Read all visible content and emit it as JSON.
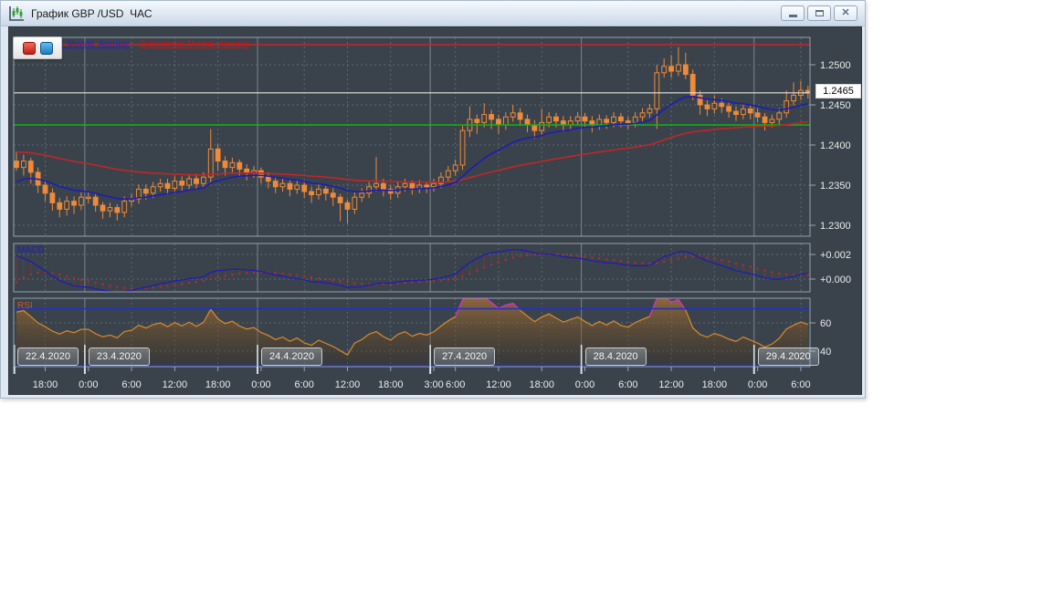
{
  "window": {
    "title": "График GBP /USD  ЧАС",
    "icon": "candlestick-chart-icon",
    "controls": {
      "minimize": "minimize",
      "restore": "restore-down",
      "close": "close"
    }
  },
  "toolbar": {
    "buttons": [
      {
        "name": "red-square",
        "color": "#c01f14"
      },
      {
        "name": "blue-square",
        "color": "#1a7ac2"
      }
    ]
  },
  "legend": {
    "fast_label": "Exponential_Moving_Average",
    "slow_label": "Exponential_Moving_Average",
    "fast_color": "#2323c8",
    "slow_color": "#d01414"
  },
  "panes": {
    "macd_label": "MACD",
    "rsi_label": "RSI"
  },
  "price_axis": {
    "tick_labels": [
      "1.2500",
      "1.2450",
      "1.2400",
      "1.2350",
      "1.2300"
    ],
    "tick_values": [
      1.25,
      1.245,
      1.24,
      1.235,
      1.23
    ],
    "current_price": "1.2465"
  },
  "chart_data": {
    "type": "candlestick",
    "instrument": "GBP /USD",
    "timeframe": "ЧАС",
    "current_price": 1.2465,
    "levels": {
      "resistance_red": 1.2525,
      "support_green": 1.2425,
      "current_white": 1.2465
    },
    "ylim": [
      1.2286,
      1.2534
    ],
    "days": [
      {
        "label": "22.4.2020",
        "index": 0
      },
      {
        "label": "23.4.2020",
        "index": 10
      },
      {
        "label": "24.4.2020",
        "index": 34
      },
      {
        "label": "27.4.2020",
        "index": 58
      },
      {
        "label": "28.4.2020",
        "index": 79
      },
      {
        "label": "29.4.2020",
        "index": 103
      }
    ],
    "time_ticks": [
      {
        "index": 4,
        "label": "18:00"
      },
      {
        "index": 10,
        "label": "0:00"
      },
      {
        "index": 16,
        "label": "6:00"
      },
      {
        "index": 22,
        "label": "12:00"
      },
      {
        "index": 28,
        "label": "18:00"
      },
      {
        "index": 34,
        "label": "0:00"
      },
      {
        "index": 40,
        "label": "6:00"
      },
      {
        "index": 46,
        "label": "12:00"
      },
      {
        "index": 52,
        "label": "18:00"
      },
      {
        "index": 58,
        "label": "3:00"
      },
      {
        "index": 61,
        "label": "6:00"
      },
      {
        "index": 67,
        "label": "12:00"
      },
      {
        "index": 73,
        "label": "18:00"
      },
      {
        "index": 79,
        "label": "0:00"
      },
      {
        "index": 85,
        "label": "6:00"
      },
      {
        "index": 91,
        "label": "12:00"
      },
      {
        "index": 97,
        "label": "18:00"
      },
      {
        "index": 103,
        "label": "0:00"
      },
      {
        "index": 109,
        "label": "6:00"
      }
    ],
    "candles": [
      [
        1.238,
        1.2392,
        1.2368,
        1.2372
      ],
      [
        1.2372,
        1.2388,
        1.2362,
        1.238
      ],
      [
        1.238,
        1.2384,
        1.2352,
        1.2366
      ],
      [
        1.2366,
        1.2372,
        1.234,
        1.235
      ],
      [
        1.235,
        1.2356,
        1.233,
        1.234
      ],
      [
        1.234,
        1.2346,
        1.2318,
        1.2328
      ],
      [
        1.2328,
        1.2334,
        1.231,
        1.232
      ],
      [
        1.232,
        1.2336,
        1.2312,
        1.233
      ],
      [
        1.233,
        1.2336,
        1.2314,
        1.2325
      ],
      [
        1.2325,
        1.2341,
        1.2319,
        1.2335
      ],
      [
        1.2335,
        1.2341,
        1.2327,
        1.2335
      ],
      [
        1.2335,
        1.2339,
        1.2317,
        1.2325
      ],
      [
        1.2325,
        1.2329,
        1.2308,
        1.2318
      ],
      [
        1.2318,
        1.2328,
        1.231,
        1.2322
      ],
      [
        1.2322,
        1.2326,
        1.2306,
        1.2316
      ],
      [
        1.2316,
        1.2336,
        1.231,
        1.233
      ],
      [
        1.233,
        1.2339,
        1.2324,
        1.2333
      ],
      [
        1.2333,
        1.2351,
        1.2327,
        1.2345
      ],
      [
        1.2345,
        1.2351,
        1.2332,
        1.234
      ],
      [
        1.234,
        1.2354,
        1.2334,
        1.2348
      ],
      [
        1.2348,
        1.2358,
        1.2342,
        1.2352
      ],
      [
        1.2352,
        1.2358,
        1.2338,
        1.2346
      ],
      [
        1.2346,
        1.2361,
        1.234,
        1.2355
      ],
      [
        1.2355,
        1.2361,
        1.2343,
        1.235
      ],
      [
        1.235,
        1.2364,
        1.2344,
        1.2358
      ],
      [
        1.2358,
        1.2364,
        1.2344,
        1.2352
      ],
      [
        1.2352,
        1.2366,
        1.2346,
        1.236
      ],
      [
        1.236,
        1.242,
        1.2352,
        1.2395
      ],
      [
        1.2395,
        1.2401,
        1.2368,
        1.238
      ],
      [
        1.238,
        1.2386,
        1.2362,
        1.2372
      ],
      [
        1.2372,
        1.2384,
        1.2366,
        1.2378
      ],
      [
        1.2378,
        1.2382,
        1.236,
        1.237
      ],
      [
        1.237,
        1.2376,
        1.2356,
        1.2365
      ],
      [
        1.2365,
        1.2374,
        1.2359,
        1.2368
      ],
      [
        1.2368,
        1.2372,
        1.2352,
        1.236
      ],
      [
        1.236,
        1.2366,
        1.2346,
        1.2355
      ],
      [
        1.2355,
        1.236,
        1.234,
        1.2348
      ],
      [
        1.2348,
        1.2358,
        1.2342,
        1.2352
      ],
      [
        1.2352,
        1.2356,
        1.2336,
        1.2345
      ],
      [
        1.2345,
        1.2356,
        1.2339,
        1.235
      ],
      [
        1.235,
        1.2354,
        1.2334,
        1.2342
      ],
      [
        1.2342,
        1.2348,
        1.2328,
        1.2338
      ],
      [
        1.2338,
        1.2351,
        1.2332,
        1.2345
      ],
      [
        1.2345,
        1.2349,
        1.2331,
        1.234
      ],
      [
        1.234,
        1.2346,
        1.2324,
        1.2335
      ],
      [
        1.2335,
        1.2339,
        1.2305,
        1.2328
      ],
      [
        1.2328,
        1.2332,
        1.2302,
        1.232
      ],
      [
        1.232,
        1.2341,
        1.2314,
        1.2335
      ],
      [
        1.2335,
        1.2346,
        1.2329,
        1.234
      ],
      [
        1.234,
        1.2354,
        1.2334,
        1.2348
      ],
      [
        1.2348,
        1.2385,
        1.2342,
        1.2352
      ],
      [
        1.2352,
        1.2358,
        1.2336,
        1.2345
      ],
      [
        1.2345,
        1.235,
        1.2332,
        1.234
      ],
      [
        1.234,
        1.2354,
        1.2334,
        1.2348
      ],
      [
        1.2348,
        1.2358,
        1.2342,
        1.2352
      ],
      [
        1.2352,
        1.2356,
        1.2338,
        1.2346
      ],
      [
        1.2346,
        1.2356,
        1.234,
        1.235
      ],
      [
        1.235,
        1.2354,
        1.234,
        1.2348
      ],
      [
        1.2348,
        1.2358,
        1.2342,
        1.2352
      ],
      [
        1.2352,
        1.2366,
        1.2346,
        1.236
      ],
      [
        1.236,
        1.2374,
        1.2354,
        1.2368
      ],
      [
        1.2368,
        1.2382,
        1.2362,
        1.2375
      ],
      [
        1.2375,
        1.2424,
        1.2369,
        1.2418
      ],
      [
        1.2418,
        1.2448,
        1.241,
        1.2432
      ],
      [
        1.2432,
        1.2438,
        1.2414,
        1.2428
      ],
      [
        1.2428,
        1.2452,
        1.2422,
        1.2438
      ],
      [
        1.2438,
        1.2444,
        1.242,
        1.2432
      ],
      [
        1.2432,
        1.2438,
        1.2414,
        1.2425
      ],
      [
        1.2425,
        1.2441,
        1.2419,
        1.2435
      ],
      [
        1.2435,
        1.245,
        1.2429,
        1.244
      ],
      [
        1.244,
        1.2446,
        1.2424,
        1.2432
      ],
      [
        1.2432,
        1.2438,
        1.2416,
        1.2425
      ],
      [
        1.2425,
        1.2431,
        1.2408,
        1.2418
      ],
      [
        1.2418,
        1.2445,
        1.2412,
        1.2428
      ],
      [
        1.2428,
        1.2441,
        1.2422,
        1.2435
      ],
      [
        1.2435,
        1.244,
        1.2422,
        1.243
      ],
      [
        1.243,
        1.2436,
        1.2416,
        1.2425
      ],
      [
        1.2425,
        1.2436,
        1.2419,
        1.243
      ],
      [
        1.243,
        1.2441,
        1.2424,
        1.2435
      ],
      [
        1.2435,
        1.244,
        1.2422,
        1.243
      ],
      [
        1.243,
        1.2436,
        1.2416,
        1.2425
      ],
      [
        1.2425,
        1.2438,
        1.2419,
        1.2432
      ],
      [
        1.2432,
        1.2437,
        1.242,
        1.2428
      ],
      [
        1.2428,
        1.2441,
        1.2422,
        1.2435
      ],
      [
        1.2435,
        1.244,
        1.2422,
        1.243
      ],
      [
        1.243,
        1.2435,
        1.242,
        1.2428
      ],
      [
        1.2428,
        1.2441,
        1.2422,
        1.2435
      ],
      [
        1.2435,
        1.2446,
        1.2429,
        1.244
      ],
      [
        1.244,
        1.2451,
        1.2434,
        1.2445
      ],
      [
        1.2445,
        1.25,
        1.242,
        1.249
      ],
      [
        1.249,
        1.2508,
        1.2484,
        1.2498
      ],
      [
        1.2498,
        1.2512,
        1.2484,
        1.2492
      ],
      [
        1.2492,
        1.2522,
        1.2486,
        1.25
      ],
      [
        1.25,
        1.2515,
        1.2482,
        1.2488
      ],
      [
        1.2488,
        1.2494,
        1.2456,
        1.2462
      ],
      [
        1.2462,
        1.2468,
        1.2438,
        1.245
      ],
      [
        1.245,
        1.2456,
        1.2436,
        1.2445
      ],
      [
        1.2445,
        1.2462,
        1.2439,
        1.2452
      ],
      [
        1.2452,
        1.2458,
        1.244,
        1.2448
      ],
      [
        1.2448,
        1.2453,
        1.2434,
        1.2442
      ],
      [
        1.2442,
        1.2448,
        1.243,
        1.2438
      ],
      [
        1.2438,
        1.2451,
        1.2432,
        1.2445
      ],
      [
        1.2445,
        1.245,
        1.2432,
        1.244
      ],
      [
        1.244,
        1.2446,
        1.2428,
        1.2435
      ],
      [
        1.2435,
        1.244,
        1.2418,
        1.2428
      ],
      [
        1.2428,
        1.2438,
        1.2422,
        1.2432
      ],
      [
        1.2432,
        1.2446,
        1.2426,
        1.244
      ],
      [
        1.244,
        1.2468,
        1.2434,
        1.2455
      ],
      [
        1.2455,
        1.2478,
        1.2449,
        1.2462
      ],
      [
        1.2462,
        1.248,
        1.2456,
        1.2468
      ],
      [
        1.2468,
        1.2474,
        1.2458,
        1.2465
      ]
    ],
    "indicators": {
      "ema_fast": {
        "period": 16,
        "seed": 1.2352,
        "color": "#1d1db8"
      },
      "ema_slow": {
        "period": 60,
        "seed": 1.2392,
        "color": "#c42525"
      },
      "macd": {
        "fast": 12,
        "slow": 26,
        "signal": 9,
        "seed_fast_offset": 0.0018,
        "seed_slow_offset": -0.0004,
        "signal_seed": -0.0008,
        "axis_labels": [
          "+0.002",
          "+0.000"
        ],
        "axis_values": [
          0.002,
          0.0
        ],
        "line_color": "#1d1db8",
        "signal_color": "#cc2626"
      },
      "rsi": {
        "period": 14,
        "seed_gain": 0.00125,
        "seed_loss": 0.0006,
        "levels": [
          70,
          30
        ],
        "axis_labels": [
          "60",
          "40"
        ],
        "axis_values": [
          60,
          40
        ],
        "line_color": "#d88a2e",
        "over_color": "#d428d4",
        "level_color": "#2230c0"
      }
    },
    "colors": {
      "background": "#3a434b",
      "candle": "#ee8a38",
      "grid": "#5c6870",
      "day_grid": "#79858e",
      "pane_border": "#96a2aa",
      "axis_text": "#e8ecef",
      "level_red": "#c82424",
      "level_green": "#12b412",
      "level_white": "#e6e6e6",
      "day_tick": "#d6e4ee"
    }
  }
}
